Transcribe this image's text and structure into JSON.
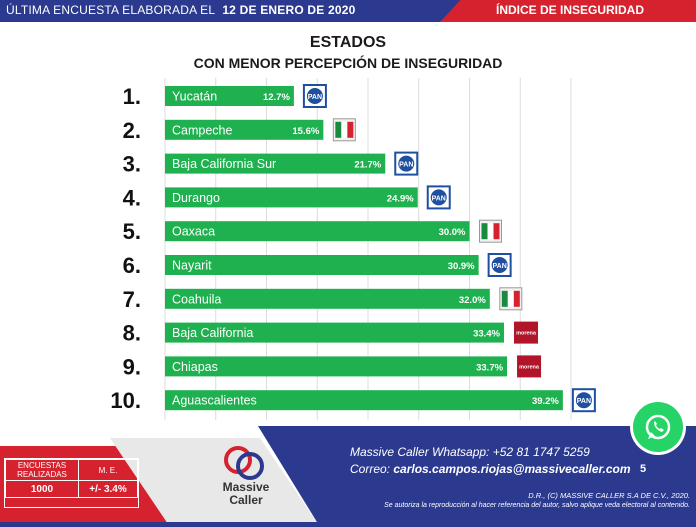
{
  "header": {
    "survey_prefix": "ÚLTIMA ENCUESTA ELABORADA EL",
    "survey_date": "12 DE ENERO DE 2020",
    "section": "ÍNDICE DE INSEGURIDAD"
  },
  "chart_data": {
    "type": "bar",
    "orientation": "horizontal",
    "title": "ESTADOS",
    "subtitle": "CON MENOR PERCEPCIÓN DE INSEGURIDAD",
    "xlim": [
      0,
      40
    ],
    "grid": true,
    "categories": [
      "Yucatán",
      "Campeche",
      "Baja California Sur",
      "Durango",
      "Oaxaca",
      "Nayarit",
      "Coahuila",
      "Baja California",
      "Chiapas",
      "Aguascalientes"
    ],
    "ranks": [
      "1.",
      "2.",
      "3.",
      "4.",
      "5.",
      "6.",
      "7.",
      "8.",
      "9.",
      "10."
    ],
    "values": [
      12.7,
      15.6,
      21.7,
      24.9,
      30.0,
      30.9,
      32.0,
      33.4,
      33.7,
      39.2
    ],
    "value_labels": [
      "12.7%",
      "15.6%",
      "21.7%",
      "24.9%",
      "30.0%",
      "30.9%",
      "32.0%",
      "33.4%",
      "33.7%",
      "39.2%"
    ],
    "parties": [
      "PAN",
      "PRI",
      "PAN",
      "PAN",
      "PRI",
      "PAN",
      "PRI",
      "morena",
      "morena",
      "PAN"
    ],
    "bar_color": "#1fb14f"
  },
  "party_colors": {
    "PAN": "#1f4fa0",
    "PRI_green": "#1a8a3c",
    "PRI_red": "#d6222e",
    "morena": "#b0152a"
  },
  "footer": {
    "whatsapp": "Massive Caller Whatsapp: +52   81 1747 5259",
    "email_label": "Correo:",
    "email": "carlos.campos.riojas@massivecaller.com",
    "page": "5",
    "copyright": "D.R., (C) MASSIVE CALLER S.A DE C.V., 2020.",
    "disclaimer": "Se autoriza la reproducción al hacer referencia del autor, salvo aplique veda electoral al contenido.",
    "logo_text_1": "Massive",
    "logo_text_2": "Caller",
    "survey_table": {
      "col1": "ENCUESTAS REALIZADAS",
      "col2": "M. E.",
      "val1": "1000",
      "val2": "+/- 3.4%"
    }
  },
  "colors": {
    "navy": "#2b3a8f",
    "red": "#d6222e",
    "whatsapp": "#25d366"
  }
}
